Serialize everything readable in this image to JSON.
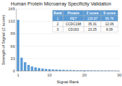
{
  "chart_data": {
    "type": "bar",
    "title": "Human Protein Microarray Specificity Validation",
    "xlabel": "Signal Rank",
    "ylabel": "Strength of Signal (Z score)",
    "x": [
      1,
      2,
      3,
      4,
      5,
      6,
      7,
      8,
      9,
      10,
      11,
      12,
      13,
      14,
      15,
      16,
      17,
      18,
      19,
      20,
      21,
      22,
      23,
      24,
      25,
      26,
      27,
      28,
      29,
      30
    ],
    "values": [
      135.87,
      35.31,
      23.25,
      16.0,
      12.0,
      9.5,
      7.8,
      6.5,
      5.5,
      4.8,
      4.2,
      3.7,
      3.3,
      3.0,
      2.7,
      2.5,
      2.3,
      2.1,
      2.0,
      1.85,
      1.7,
      1.6,
      1.5,
      1.4,
      1.3,
      1.25,
      1.2,
      1.1,
      1.05,
      1.0
    ],
    "color": "#5b9bd5",
    "xlim": [
      0.5,
      30
    ],
    "xticks": [
      1,
      10,
      20,
      30
    ],
    "ylim": [
      0,
      165
    ],
    "yticks": [
      0,
      33,
      66,
      99,
      132,
      165
    ],
    "table": {
      "headers": [
        "Rank",
        "Protein",
        "Z score",
        "S score"
      ],
      "rows": [
        [
          "1",
          "RET",
          "135.87",
          "99.76"
        ],
        [
          "2",
          "CCDC198",
          "35.31",
          "12.06"
        ],
        [
          "3",
          "CD163",
          "23.25",
          "8.39"
        ]
      ]
    }
  }
}
